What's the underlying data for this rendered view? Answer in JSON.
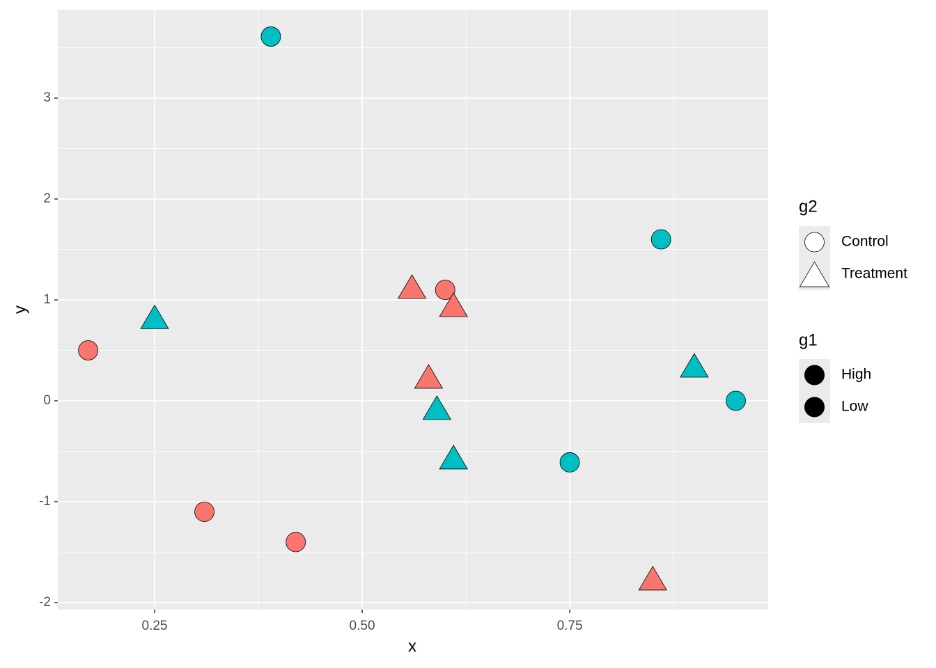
{
  "chart_data": {
    "type": "scatter",
    "x_label": "x",
    "y_label": "y",
    "xlim": [
      0.1334,
      0.989
    ],
    "ylim": [
      -2.069,
      3.876
    ],
    "xticks": [
      {
        "value": 0.25,
        "label": "0.25"
      },
      {
        "value": 0.5,
        "label": "0.50"
      },
      {
        "value": 0.75,
        "label": "0.75"
      }
    ],
    "yticks": [
      -2,
      -1,
      0,
      1,
      2,
      3
    ],
    "grid": true,
    "minor_grid": true,
    "panel_color": "#ebebeb",
    "shape_legend": {
      "title": "g2",
      "labels": [
        "Control",
        "Treatment"
      ],
      "shapes": [
        "circle",
        "triangle"
      ]
    },
    "fill_legend_title": "g1",
    "series": [
      {
        "name": "High",
        "color": "#F8766D",
        "x": [
          0.17,
          0.31,
          0.42,
          0.6,
          0.56,
          0.61,
          0.58,
          0.85
        ],
        "values": [
          0.5,
          -1.1,
          -1.4,
          1.1,
          1.12,
          0.94,
          0.23,
          -1.77
        ],
        "shapes": [
          "circle",
          "circle",
          "circle",
          "circle",
          "triangle",
          "triangle",
          "triangle",
          "triangle"
        ]
      },
      {
        "name": "Low",
        "color": "#00BFC4",
        "x": [
          0.39,
          0.86,
          0.75,
          0.95,
          0.25,
          0.9,
          0.59,
          0.61
        ],
        "values": [
          3.61,
          1.6,
          -0.61,
          0.0,
          0.82,
          0.34,
          -0.08,
          -0.57
        ],
        "shapes": [
          "circle",
          "circle",
          "circle",
          "circle",
          "triangle",
          "triangle",
          "triangle",
          "triangle"
        ]
      }
    ]
  }
}
